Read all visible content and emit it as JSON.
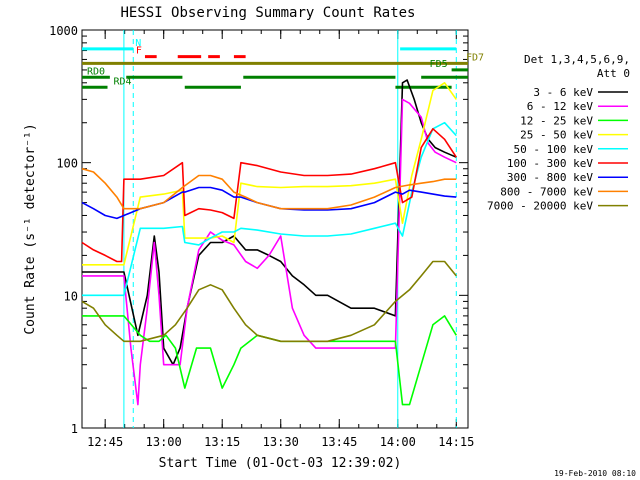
{
  "chart_data": {
    "type": "line",
    "title": "HESSI Observing Summary Count Rates",
    "xlabel": "Start Time (01-Oct-03 12:39:02)",
    "ylabel": "Count Rate (s⁻¹ detector⁻¹)",
    "yscale": "log",
    "ylim": [
      1,
      1000
    ],
    "xlim": [
      12.651,
      14.3
    ],
    "x_ticks": [
      {
        "value": 12.75,
        "label": "12:45"
      },
      {
        "value": 13.0,
        "label": "13:00"
      },
      {
        "value": 13.25,
        "label": "13:15"
      },
      {
        "value": 13.5,
        "label": "13:30"
      },
      {
        "value": 13.75,
        "label": "13:45"
      },
      {
        "value": 14.0,
        "label": "14:00"
      },
      {
        "value": 14.25,
        "label": "14:15"
      }
    ],
    "y_ticks": [
      {
        "value": 1,
        "label": "1"
      },
      {
        "value": 10,
        "label": "10"
      },
      {
        "value": 100,
        "label": "100"
      },
      {
        "value": 1000,
        "label": "1000"
      }
    ],
    "legend_header": [
      "Det 1,3,4,5,6,9,",
      "Att 0"
    ],
    "legend_position": "right",
    "series": [
      {
        "name": "3 - 6 keV",
        "color": "#000000",
        "x": [
          12.651,
          12.83,
          12.89,
          12.93,
          12.96,
          12.98,
          13.0,
          13.04,
          13.07,
          13.1,
          13.15,
          13.2,
          13.25,
          13.3,
          13.35,
          13.4,
          13.45,
          13.5,
          13.55,
          13.6,
          13.65,
          13.7,
          13.8,
          13.9,
          13.99,
          14.02,
          14.04,
          14.07,
          14.1,
          14.13,
          14.16,
          14.2,
          14.25
        ],
        "y": [
          15,
          15,
          5,
          10,
          28,
          15,
          4,
          3,
          4,
          8,
          20,
          25,
          25,
          28,
          22,
          22,
          20,
          18,
          14,
          12,
          10,
          10,
          8,
          8,
          7,
          400,
          420,
          300,
          200,
          150,
          130,
          120,
          110
        ]
      },
      {
        "name": "6 - 12 keV",
        "color": "#ff00ff",
        "x": [
          12.651,
          12.83,
          12.86,
          12.89,
          12.9,
          12.93,
          12.96,
          12.98,
          13.0,
          13.04,
          13.07,
          13.1,
          13.15,
          13.2,
          13.25,
          13.3,
          13.35,
          13.4,
          13.45,
          13.5,
          13.55,
          13.6,
          13.65,
          13.7,
          13.99,
          14.02,
          14.05,
          14.1,
          14.13,
          14.16,
          14.2,
          14.25
        ],
        "y": [
          14,
          14,
          4,
          1.5,
          3,
          8,
          25,
          10,
          3,
          3,
          3,
          8,
          22,
          30,
          26,
          24,
          18,
          16,
          20,
          28,
          8,
          5,
          4,
          4,
          4,
          300,
          280,
          220,
          140,
          120,
          110,
          100
        ]
      },
      {
        "name": "12 - 25 keV",
        "color": "#00ff00",
        "x": [
          12.651,
          12.83,
          12.9,
          12.94,
          12.98,
          13.01,
          13.05,
          13.09,
          13.14,
          13.2,
          13.25,
          13.3,
          13.33,
          13.4,
          13.5,
          13.6,
          13.7,
          13.8,
          13.9,
          13.99,
          14.02,
          14.05,
          14.1,
          14.15,
          14.2,
          14.25
        ],
        "y": [
          7,
          7,
          5,
          4.5,
          4.5,
          5,
          4,
          2,
          4,
          4,
          2,
          3,
          4,
          5,
          4.5,
          4.5,
          4.5,
          4.5,
          4.5,
          4.5,
          1.5,
          1.5,
          3,
          6,
          7,
          5
        ]
      },
      {
        "name": "25 - 50 keV",
        "color": "#ffff00",
        "x": [
          12.651,
          12.83,
          12.9,
          13.0,
          13.08,
          13.09,
          13.15,
          13.2,
          13.25,
          13.3,
          13.33,
          13.4,
          13.5,
          13.6,
          13.7,
          13.8,
          13.9,
          13.99,
          14.02,
          14.06,
          14.1,
          14.15,
          14.2,
          14.25
        ],
        "y": [
          17,
          17,
          55,
          58,
          62,
          27,
          27,
          27,
          28,
          25,
          70,
          66,
          65,
          66,
          66,
          67,
          70,
          75,
          35,
          80,
          150,
          350,
          400,
          300
        ]
      },
      {
        "name": "50 - 100 keV",
        "color": "#00ffff",
        "x": [
          12.651,
          12.83,
          12.9,
          13.0,
          13.08,
          13.09,
          13.15,
          13.2,
          13.25,
          13.3,
          13.33,
          13.4,
          13.5,
          13.6,
          13.7,
          13.8,
          13.9,
          13.99,
          14.02,
          14.06,
          14.1,
          14.15,
          14.2,
          14.25
        ],
        "y": [
          10,
          10,
          32,
          32,
          33,
          25,
          24,
          27,
          30,
          30,
          32,
          31,
          29,
          28,
          28,
          29,
          32,
          35,
          28,
          60,
          110,
          180,
          200,
          160
        ]
      },
      {
        "name": "100 - 300 keV",
        "color": "#ff0000",
        "x": [
          12.651,
          12.7,
          12.75,
          12.8,
          12.82,
          12.83,
          12.9,
          13.0,
          13.08,
          13.09,
          13.15,
          13.2,
          13.25,
          13.3,
          13.33,
          13.4,
          13.5,
          13.6,
          13.7,
          13.8,
          13.9,
          13.99,
          14.02,
          14.06,
          14.1,
          14.15,
          14.2,
          14.25
        ],
        "y": [
          25,
          22,
          20,
          18,
          18,
          75,
          75,
          80,
          100,
          40,
          45,
          44,
          42,
          38,
          100,
          95,
          85,
          80,
          80,
          82,
          90,
          100,
          50,
          55,
          130,
          180,
          150,
          110
        ]
      },
      {
        "name": "300 - 800 keV",
        "color": "#0000ff",
        "x": [
          12.651,
          12.7,
          12.75,
          12.8,
          12.83,
          12.9,
          13.0,
          13.08,
          13.09,
          13.15,
          13.2,
          13.25,
          13.3,
          13.33,
          13.4,
          13.5,
          13.6,
          13.7,
          13.8,
          13.9,
          13.99,
          14.02,
          14.05,
          14.1,
          14.15,
          14.2,
          14.25
        ],
        "y": [
          50,
          45,
          40,
          38,
          40,
          45,
          50,
          60,
          60,
          65,
          65,
          62,
          55,
          55,
          50,
          45,
          44,
          44,
          45,
          50,
          60,
          58,
          62,
          60,
          58,
          56,
          55
        ]
      },
      {
        "name": "800 - 7000 keV",
        "color": "#ff8000",
        "x": [
          12.651,
          12.7,
          12.75,
          12.8,
          12.83,
          12.9,
          13.0,
          13.08,
          13.15,
          13.2,
          13.25,
          13.3,
          13.35,
          13.4,
          13.5,
          13.6,
          13.7,
          13.8,
          13.9,
          13.99,
          14.05,
          14.1,
          14.15,
          14.2,
          14.25
        ],
        "y": [
          90,
          85,
          70,
          55,
          45,
          45,
          50,
          65,
          80,
          80,
          75,
          60,
          55,
          50,
          45,
          45,
          45,
          48,
          55,
          65,
          68,
          70,
          72,
          75,
          75
        ]
      },
      {
        "name": "7000 - 20000 keV",
        "color": "#808000",
        "x": [
          12.651,
          12.7,
          12.75,
          12.8,
          12.83,
          12.9,
          13.0,
          13.05,
          13.1,
          13.15,
          13.2,
          13.25,
          13.3,
          13.35,
          13.4,
          13.5,
          13.6,
          13.7,
          13.8,
          13.9,
          13.99,
          14.05,
          14.1,
          14.15,
          14.2,
          14.25
        ],
        "y": [
          9,
          8,
          6,
          5,
          4.5,
          4.5,
          5,
          6,
          8,
          11,
          12,
          11,
          8,
          6,
          5,
          4.5,
          4.5,
          4.5,
          5,
          6,
          9,
          11,
          14,
          18,
          18,
          14
        ]
      }
    ],
    "vertical_dashed_lines": [
      {
        "x": 12.87,
        "color": "#00ffff"
      },
      {
        "x": 14.25,
        "color": "#00ffff"
      }
    ],
    "vertical_solid_lines": [
      {
        "x": 12.83,
        "color": "#00ffff"
      },
      {
        "x": 14.0,
        "color": "#00ffff"
      }
    ],
    "flag_bars": [
      {
        "label": "N",
        "color": "#00ffff",
        "y": 720,
        "segments": [
          [
            12.651,
            12.87
          ],
          [
            14.01,
            14.25
          ]
        ]
      },
      {
        "label": "F",
        "color": "#ff0000",
        "y": 630,
        "segments": [
          [
            12.92,
            12.97
          ],
          [
            13.06,
            13.16
          ],
          [
            13.19,
            13.24
          ],
          [
            13.3,
            13.35
          ]
        ]
      },
      {
        "label": "FD7",
        "color": "#808000",
        "y": 560,
        "segments": [
          [
            12.651,
            14.3
          ]
        ]
      },
      {
        "label": "FD5",
        "color": "#008000",
        "y": 500,
        "segments": [
          [
            14.23,
            14.3
          ]
        ]
      },
      {
        "label": "RD0",
        "color": "#008000",
        "y": 440,
        "segments": [
          [
            12.651,
            12.77
          ],
          [
            12.84,
            13.08
          ],
          [
            13.34,
            13.99
          ],
          [
            14.1,
            14.3
          ]
        ]
      },
      {
        "label": "RD4",
        "color": "#008000",
        "y": 370,
        "segments": [
          [
            12.651,
            12.76
          ],
          [
            13.09,
            13.33
          ],
          [
            13.99,
            14.23
          ]
        ]
      }
    ]
  },
  "footer": {
    "date_stamp": "19-Feb-2010 08:10"
  }
}
